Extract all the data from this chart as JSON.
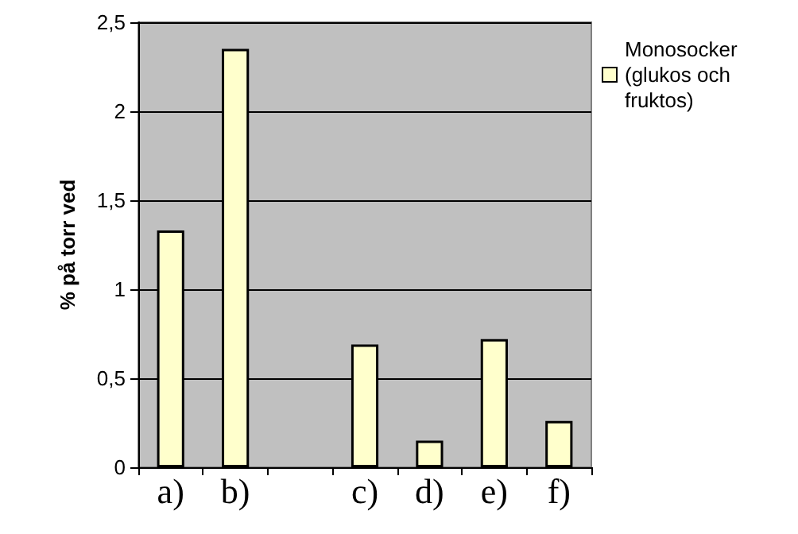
{
  "chart_data": {
    "type": "bar",
    "ylabel": "% på torr ved",
    "categories": [
      "a)",
      "b)",
      null,
      "c)",
      "d)",
      "e)",
      "f)"
    ],
    "series": [
      {
        "name": "Monosocker (glukos och fruktos)",
        "color": "#ffffcc",
        "values": [
          1.33,
          2.35,
          null,
          0.69,
          0.15,
          0.72,
          0.26
        ]
      }
    ],
    "ylim": [
      0,
      2.5
    ],
    "yticks": [
      {
        "value": 0,
        "label": "0"
      },
      {
        "value": 0.5,
        "label": "0,5"
      },
      {
        "value": 1,
        "label": "1"
      },
      {
        "value": 1.5,
        "label": "1,5"
      },
      {
        "value": 2,
        "label": "2"
      },
      {
        "value": 2.5,
        "label": "2,5"
      }
    ],
    "grid": "y",
    "legend": "right"
  }
}
